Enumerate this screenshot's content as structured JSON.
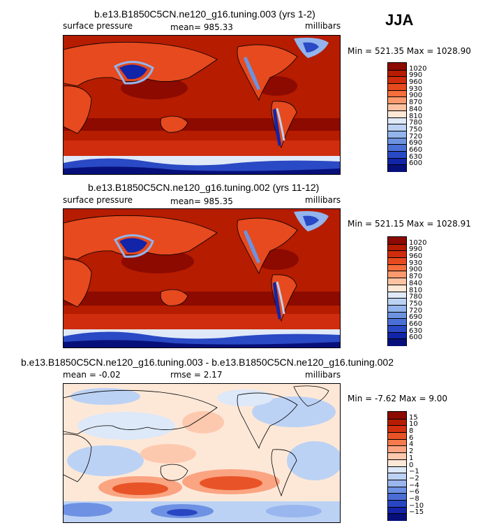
{
  "season": "JJA",
  "chart_data": [
    {
      "type": "heatmap",
      "title": "b.e13.B1850C5CN.ne120_g16.tuning.003 (yrs 1-2)",
      "left_label": "surface pressure",
      "center_label": "mean= 985.33",
      "right_label": "millibars",
      "stats": "Min = 521.35 Max = 1028.90",
      "min": 521.35,
      "max": 1028.9,
      "mean": 985.33,
      "colorbar_levels": [
        "1020",
        "990",
        "960",
        "930",
        "900",
        "870",
        "840",
        "810",
        "780",
        "750",
        "720",
        "690",
        "660",
        "630",
        "600"
      ],
      "colors": [
        "#8c0a00",
        "#b51c00",
        "#cf2d0d",
        "#e64a1e",
        "#f56e3c",
        "#fa9a6e",
        "#fcc3a3",
        "#fde8d6",
        "#dfe9f7",
        "#bcd2f2",
        "#93b4ec",
        "#6d93e0",
        "#4a6fd6",
        "#2a49c4",
        "#1224a8",
        "#07107a"
      ]
    },
    {
      "type": "heatmap",
      "title": "b.e13.B1850C5CN.ne120_g16.tuning.002 (yrs 11-12)",
      "left_label": "surface pressure",
      "center_label": "mean= 985.35",
      "right_label": "millibars",
      "stats": "Min = 521.15 Max = 1028.91",
      "min": 521.15,
      "max": 1028.91,
      "mean": 985.35,
      "colorbar_levels": [
        "1020",
        "990",
        "960",
        "930",
        "900",
        "870",
        "840",
        "810",
        "780",
        "750",
        "720",
        "690",
        "660",
        "630",
        "600"
      ],
      "colors": [
        "#8c0a00",
        "#b51c00",
        "#cf2d0d",
        "#e64a1e",
        "#f56e3c",
        "#fa9a6e",
        "#fcc3a3",
        "#fde8d6",
        "#dfe9f7",
        "#bcd2f2",
        "#93b4ec",
        "#6d93e0",
        "#4a6fd6",
        "#2a49c4",
        "#1224a8",
        "#07107a"
      ]
    },
    {
      "type": "heatmap",
      "title": "b.e13.B1850C5CN.ne120_g16.tuning.003 - b.e13.B1850C5CN.ne120_g16.tuning.002",
      "left_label": "mean = -0.02",
      "center_label": "rmse = 2.17",
      "right_label": "millibars",
      "stats": "Min = -7.62 Max = 9.00",
      "min": -7.62,
      "max": 9.0,
      "mean": -0.02,
      "rmse": 2.17,
      "colorbar_levels": [
        "15",
        "10",
        "8",
        "6",
        "4",
        "2",
        "1",
        "0",
        "−1",
        "−2",
        "−4",
        "−6",
        "−8",
        "−10",
        "−15"
      ],
      "colors": [
        "#8c0a00",
        "#b51c00",
        "#d2300f",
        "#e85427",
        "#f57a4d",
        "#fba482",
        "#fdc9ae",
        "#fde8d8",
        "#dde8f8",
        "#bcd2f4",
        "#9ab6ee",
        "#6e91e3",
        "#4a6dd6",
        "#2946c2",
        "#1425a8",
        "#070f7a"
      ]
    }
  ]
}
